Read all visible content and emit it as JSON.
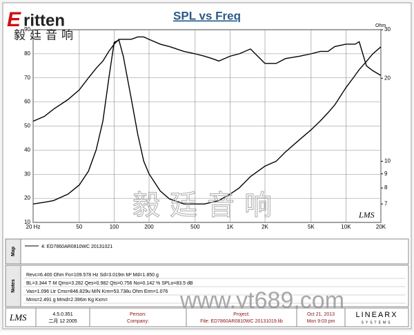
{
  "logo": {
    "brand": "ritten",
    "initial": "E",
    "chinese": "毅廷音响"
  },
  "watermark": {
    "chinese": "毅廷音响",
    "url": "www.yt689.com"
  },
  "chart_data": {
    "type": "line",
    "title": "SPL vs Freq",
    "y2_label": "Ohm",
    "plot_mark": "LMS",
    "log_x": true,
    "log_y2": true,
    "grid": true,
    "xlim": [
      20,
      20000
    ],
    "xticks": [
      {
        "value": 20,
        "label": "20 Hz"
      },
      50,
      100,
      200,
      500,
      {
        "value": 1000,
        "label": "1K"
      },
      {
        "value": 2000,
        "label": "2K"
      },
      {
        "value": 5000,
        "label": "5K"
      },
      {
        "value": 10000,
        "label": "10K"
      },
      {
        "value": 20000,
        "label": "20K"
      }
    ],
    "ylim": [
      10,
      90
    ],
    "yticks": [
      10,
      20,
      30,
      40,
      50,
      60,
      70,
      80,
      90
    ],
    "y2lim": [
      6,
      30
    ],
    "y2ticks": [
      30,
      20,
      10,
      9,
      8,
      7
    ],
    "x": [
      20,
      25,
      30,
      40,
      50,
      60,
      70,
      80,
      90,
      100,
      110,
      120,
      140,
      160,
      180,
      200,
      250,
      300,
      400,
      500,
      600,
      700,
      800,
      1000,
      1200,
      1500,
      2000,
      2500,
      3000,
      4000,
      5000,
      6000,
      7000,
      8000,
      10000,
      12000,
      13000,
      15000,
      17000,
      20000
    ],
    "series": [
      {
        "color": "#000000",
        "values": [
          52,
          54,
          57,
          61,
          65,
          70,
          74,
          77,
          81,
          84,
          86,
          86,
          86,
          87,
          87,
          86,
          84,
          83,
          81,
          80,
          79,
          78,
          77,
          79,
          80,
          82,
          76,
          76,
          78,
          79,
          80,
          81,
          81,
          83,
          84,
          84,
          85,
          75,
          73,
          71
        ]
      },
      {
        "color": "#000000",
        "axis": "y2",
        "values": [
          7,
          7.1,
          7.2,
          7.6,
          8.2,
          9.2,
          11,
          14,
          20,
          27,
          27.5,
          24,
          17,
          12.5,
          10,
          9,
          7.8,
          7.3,
          7,
          7,
          7,
          7.1,
          7.2,
          7.6,
          8,
          8.8,
          9.6,
          10,
          10.8,
          12,
          13,
          14,
          15,
          16,
          18.5,
          20.5,
          21.5,
          23,
          24.5,
          26
        ]
      }
    ]
  },
  "map": {
    "label": "Map",
    "entry": "4: ED7860AR0810WC  20131021"
  },
  "notes": {
    "label": "Notes",
    "lines": [
      "Revc=6.400 Ohm  Fo=109.578 Hz  Sd=3.019m M²  Md=1.850 g",
      "BL=3.344 T·M  Qms=3.282  Qes=0.982  Qts=0.756  No=0.142 %  SPLo=83.5 dB",
      "Vas=1.096 Ltr  Cms=846.829u M/N  Krm=53.738u Ohm  Erm=1.076",
      "Mms=2.491 g  Mmd=2.396m Kg  Kxm="
    ]
  },
  "footer": {
    "logo": "LMS",
    "version": "4.5.0.351",
    "date": "二月 12 2005",
    "person": "Person:",
    "company": "Company:",
    "project": "Project:",
    "file": "File: ED7860AR0810WC 20131019.lib",
    "day": "Oct 21, 2013",
    "time": "Mon  9:03 pm",
    "brand": "LINEARX",
    "brand_sub": "SYSTEMS"
  }
}
